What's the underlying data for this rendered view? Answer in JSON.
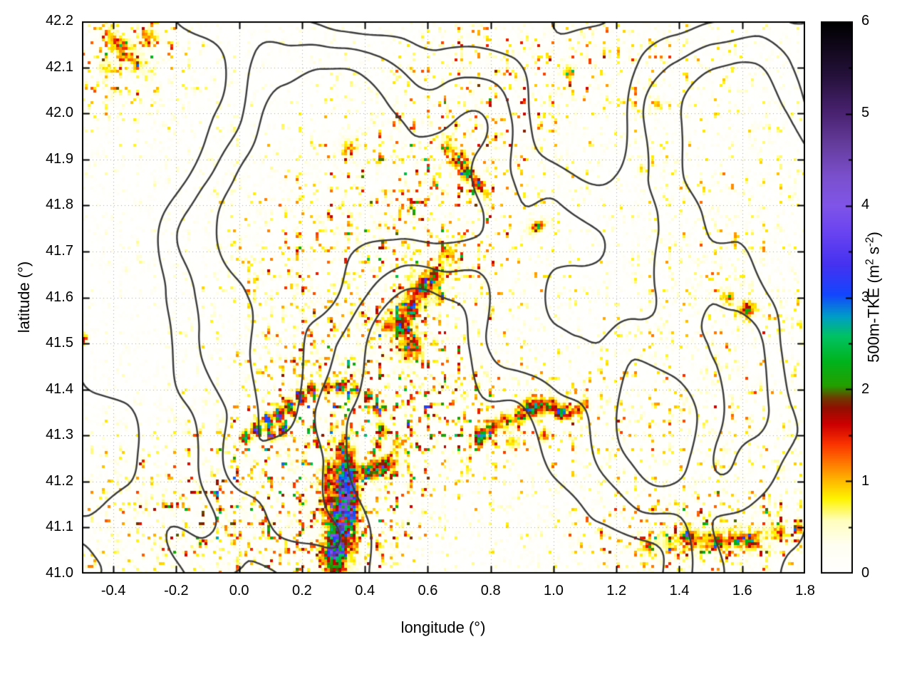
{
  "figure": {
    "xlabel": "longitude (°)",
    "ylabel": "latitude (°)",
    "cblabel_parts": {
      "pre": "500m-TKE (m",
      "sup1": "2",
      "mid": " s",
      "sup2": "-2",
      "post": ")"
    }
  },
  "chart_data": {
    "type": "heatmap",
    "title": "",
    "xlabel": "longitude (°)",
    "ylabel": "latitude (°)",
    "x_range": [
      -0.5,
      1.8
    ],
    "y_range": [
      41.0,
      42.2
    ],
    "grid": true,
    "x_ticks": [
      {
        "v": -0.4,
        "label": "-0.4"
      },
      {
        "v": -0.2,
        "label": "-0.2"
      },
      {
        "v": 0.0,
        "label": "0.0"
      },
      {
        "v": 0.2,
        "label": "0.2"
      },
      {
        "v": 0.4,
        "label": "0.4"
      },
      {
        "v": 0.6,
        "label": "0.6"
      },
      {
        "v": 0.8,
        "label": "0.8"
      },
      {
        "v": 1.0,
        "label": "1.0"
      },
      {
        "v": 1.2,
        "label": "1.2"
      },
      {
        "v": 1.4,
        "label": "1.4"
      },
      {
        "v": 1.6,
        "label": "1.6"
      },
      {
        "v": 1.8,
        "label": "1.8"
      }
    ],
    "y_ticks": [
      {
        "v": 41.0,
        "label": "41.0"
      },
      {
        "v": 41.1,
        "label": "41.1"
      },
      {
        "v": 41.2,
        "label": "41.2"
      },
      {
        "v": 41.3,
        "label": "41.3"
      },
      {
        "v": 41.4,
        "label": "41.4"
      },
      {
        "v": 41.5,
        "label": "41.5"
      },
      {
        "v": 41.6,
        "label": "41.6"
      },
      {
        "v": 41.7,
        "label": "41.7"
      },
      {
        "v": 41.8,
        "label": "41.8"
      },
      {
        "v": 41.9,
        "label": "41.9"
      },
      {
        "v": 42.0,
        "label": "42.0"
      },
      {
        "v": 42.1,
        "label": "42.1"
      },
      {
        "v": 42.2,
        "label": "42.2"
      }
    ],
    "colorbar": {
      "label": "500m-TKE (m2 s-2)",
      "range": [
        0,
        6
      ],
      "ticks": [
        {
          "v": 0,
          "label": "0"
        },
        {
          "v": 1,
          "label": "1"
        },
        {
          "v": 2,
          "label": "2"
        },
        {
          "v": 3,
          "label": "3"
        },
        {
          "v": 4,
          "label": "4"
        },
        {
          "v": 5,
          "label": "5"
        },
        {
          "v": 6,
          "label": "6"
        }
      ],
      "minor_ticks": [
        0.5,
        1.5,
        2.5,
        3.5,
        4.5,
        5.5
      ]
    },
    "palette": [
      {
        "p": 0.0,
        "c": "#ffffff"
      },
      {
        "p": 0.05,
        "c": "#fffef2"
      },
      {
        "p": 0.095,
        "c": "#ffffbe"
      },
      {
        "p": 0.135,
        "c": "#fff400"
      },
      {
        "p": 0.165,
        "c": "#ffbe00"
      },
      {
        "p": 0.2,
        "c": "#ff7800"
      },
      {
        "p": 0.235,
        "c": "#fa3200"
      },
      {
        "p": 0.27,
        "c": "#cd0000"
      },
      {
        "p": 0.3,
        "c": "#911000"
      },
      {
        "p": 0.318,
        "c": "#6e3c00"
      },
      {
        "p": 0.34,
        "c": "#23a000"
      },
      {
        "p": 0.385,
        "c": "#00b41e"
      },
      {
        "p": 0.43,
        "c": "#00c364"
      },
      {
        "p": 0.465,
        "c": "#009ec8"
      },
      {
        "p": 0.505,
        "c": "#1446ff"
      },
      {
        "p": 0.56,
        "c": "#4632f0"
      },
      {
        "p": 0.625,
        "c": "#6e46f0"
      },
      {
        "p": 0.667,
        "c": "#8055e8"
      },
      {
        "p": 0.72,
        "c": "#7b50cd"
      },
      {
        "p": 0.78,
        "c": "#643c9b"
      },
      {
        "p": 0.833,
        "c": "#4b2373"
      },
      {
        "p": 0.9,
        "c": "#26123c"
      },
      {
        "p": 1.0,
        "c": "#000000"
      }
    ],
    "hotspots": [
      [
        0.315,
        41.1,
        2.4,
        0.018,
        0.085,
        -0.15,
        1
      ],
      [
        0.335,
        41.2,
        2.0,
        0.022,
        0.055,
        0.1,
        1
      ],
      [
        0.3,
        41.05,
        1.6,
        0.03,
        0.03,
        0,
        1
      ],
      [
        0.36,
        41.14,
        1.5,
        0.012,
        0.06,
        0,
        1
      ],
      [
        0.28,
        41.17,
        1.2,
        0.012,
        0.05,
        0,
        1
      ],
      [
        0.43,
        41.225,
        2.2,
        0.035,
        0.012,
        0.15,
        1
      ],
      [
        0.47,
        41.24,
        1.4,
        0.02,
        0.01,
        0,
        1
      ],
      [
        0.5,
        41.28,
        1.0,
        0.012,
        0.012,
        0,
        1
      ],
      [
        0.02,
        41.295,
        2.0,
        0.01,
        0.01,
        0,
        1
      ],
      [
        0.055,
        41.315,
        3.2,
        0.01,
        0.01,
        0,
        1
      ],
      [
        0.09,
        41.33,
        2.6,
        0.01,
        0.01,
        0,
        1
      ],
      [
        0.125,
        41.345,
        3.6,
        0.01,
        0.01,
        0,
        1
      ],
      [
        0.16,
        41.365,
        3.0,
        0.01,
        0.01,
        0,
        1
      ],
      [
        0.195,
        41.385,
        2.4,
        0.01,
        0.01,
        0,
        1
      ],
      [
        0.23,
        41.4,
        2.0,
        0.01,
        0.01,
        0,
        1
      ],
      [
        0.275,
        41.405,
        1.6,
        0.012,
        0.01,
        0,
        1
      ],
      [
        0.32,
        41.405,
        1.9,
        0.012,
        0.01,
        0,
        1
      ],
      [
        0.365,
        41.4,
        1.5,
        0.012,
        0.01,
        0,
        1
      ],
      [
        0.41,
        41.385,
        1.7,
        0.01,
        0.01,
        0,
        1
      ],
      [
        0.44,
        41.355,
        1.5,
        0.01,
        0.01,
        0,
        1
      ],
      [
        0.45,
        41.315,
        1.6,
        0.01,
        0.01,
        0,
        1
      ],
      [
        0.44,
        41.28,
        1.3,
        0.01,
        0.01,
        0,
        1
      ],
      [
        0.1,
        41.3,
        2.8,
        0.008,
        0.008,
        0,
        1
      ],
      [
        0.14,
        41.31,
        2.2,
        0.008,
        0.008,
        0,
        1
      ],
      [
        0.765,
        41.295,
        2.6,
        0.012,
        0.012,
        0,
        1
      ],
      [
        0.8,
        41.315,
        1.7,
        0.015,
        0.012,
        0,
        1
      ],
      [
        0.845,
        41.33,
        1.2,
        0.018,
        0.012,
        0,
        1
      ],
      [
        0.89,
        41.345,
        1.4,
        0.015,
        0.012,
        0,
        1
      ],
      [
        0.935,
        41.36,
        1.9,
        0.022,
        0.014,
        0,
        1
      ],
      [
        0.985,
        41.365,
        1.5,
        0.018,
        0.012,
        0,
        1
      ],
      [
        1.03,
        41.35,
        2.0,
        0.015,
        0.012,
        0,
        1
      ],
      [
        1.075,
        41.355,
        1.5,
        0.012,
        0.01,
        0,
        1
      ],
      [
        1.1,
        41.37,
        1.2,
        0.01,
        0.01,
        0,
        1
      ],
      [
        0.87,
        41.285,
        1.0,
        0.015,
        0.01,
        0,
        1
      ],
      [
        0.97,
        41.3,
        1.4,
        0.012,
        0.01,
        0,
        1
      ],
      [
        0.545,
        41.49,
        1.5,
        0.025,
        0.02,
        0,
        1
      ],
      [
        0.52,
        41.53,
        1.1,
        0.015,
        0.012,
        0,
        1
      ],
      [
        0.56,
        41.6,
        1.0,
        0.09,
        0.025,
        0.65,
        1
      ],
      [
        0.585,
        41.625,
        1.5,
        0.012,
        0.01,
        0,
        1
      ],
      [
        0.62,
        41.645,
        1.3,
        0.01,
        0.01,
        0,
        1
      ],
      [
        0.55,
        41.57,
        1.3,
        0.012,
        0.01,
        0,
        1
      ],
      [
        0.51,
        41.545,
        1.2,
        0.01,
        0.01,
        0,
        1
      ],
      [
        0.64,
        41.6,
        1.1,
        0.01,
        0.01,
        0,
        1
      ],
      [
        0.66,
        41.7,
        0.9,
        0.015,
        0.012,
        0,
        1
      ],
      [
        0.7,
        41.9,
        1.5,
        0.018,
        0.014,
        0,
        1
      ],
      [
        0.73,
        41.87,
        1.8,
        0.015,
        0.012,
        0,
        1
      ],
      [
        0.76,
        41.845,
        1.4,
        0.012,
        0.012,
        0,
        1
      ],
      [
        0.66,
        41.93,
        1.1,
        0.015,
        0.012,
        0,
        1
      ],
      [
        0.79,
        41.82,
        1.0,
        0.01,
        0.01,
        0,
        1
      ],
      [
        0.95,
        41.755,
        1.4,
        0.02,
        0.008,
        0.3,
        1
      ],
      [
        1.615,
        41.575,
        1.8,
        0.02,
        0.012,
        0.1,
        1
      ],
      [
        1.555,
        41.6,
        1.1,
        0.015,
        0.012,
        0,
        1
      ],
      [
        1.28,
        41.88,
        0.9,
        0.008,
        0.008,
        0,
        0
      ],
      [
        1.33,
        42.02,
        1.2,
        0.008,
        0.008,
        0,
        0
      ],
      [
        1.05,
        42.09,
        1.1,
        0.012,
        0.01,
        0,
        1
      ],
      [
        0.35,
        41.93,
        0.8,
        0.02,
        0.015,
        0,
        1
      ],
      [
        -0.37,
        42.14,
        1.1,
        0.05,
        0.015,
        -0.6,
        1
      ],
      [
        -0.29,
        42.17,
        0.9,
        0.02,
        0.015,
        0,
        1
      ],
      [
        -0.42,
        42.1,
        0.8,
        0.015,
        0.012,
        0,
        1
      ],
      [
        1.52,
        41.075,
        0.9,
        0.14,
        0.018,
        0.05,
        1
      ],
      [
        1.43,
        41.08,
        1.3,
        0.012,
        0.01,
        0,
        1
      ],
      [
        1.63,
        41.065,
        1.4,
        0.01,
        0.01,
        0,
        1
      ],
      [
        1.72,
        41.09,
        1.1,
        0.012,
        0.01,
        0,
        1
      ],
      [
        1.78,
        41.1,
        1.0,
        0.01,
        0.01,
        0,
        1
      ],
      [
        1.3,
        41.06,
        0.9,
        0.012,
        0.01,
        0,
        1
      ],
      [
        -0.495,
        41.51,
        1.6,
        0.008,
        0.01,
        0,
        1
      ]
    ],
    "speckle_regions": [
      [
        0.45,
        41.47,
        1.0,
        0.28,
        0.22,
        0.55
      ],
      [
        0.3,
        41.15,
        1.0,
        0.18,
        0.14,
        0
      ],
      [
        -0.12,
        41.13,
        0.8,
        0.28,
        0.13,
        0
      ],
      [
        -0.36,
        42.12,
        0.9,
        0.14,
        0.09,
        0
      ],
      [
        0.68,
        41.88,
        0.7,
        0.22,
        0.13,
        0
      ],
      [
        1.5,
        41.08,
        0.9,
        0.32,
        0.07,
        0
      ],
      [
        1.55,
        41.5,
        0.45,
        0.28,
        0.35,
        0
      ],
      [
        1.0,
        42.12,
        0.55,
        0.35,
        0.1,
        0
      ],
      [
        0.1,
        41.75,
        0.35,
        0.2,
        0.15,
        0
      ],
      [
        0.9,
        41.33,
        0.6,
        0.25,
        0.08,
        0
      ]
    ],
    "texture": {
      "base_mask": 0.22,
      "wash_freq": 45,
      "wash_amp": 0.22,
      "speck_freq": 130,
      "speck_amp": 2.6,
      "speck_pow": 6
    },
    "contours": {
      "seed": 7,
      "freq": 2.0,
      "levels": [
        0.45,
        0.55,
        0.65
      ],
      "color": "#3c3c3c",
      "width": 2.4
    }
  }
}
